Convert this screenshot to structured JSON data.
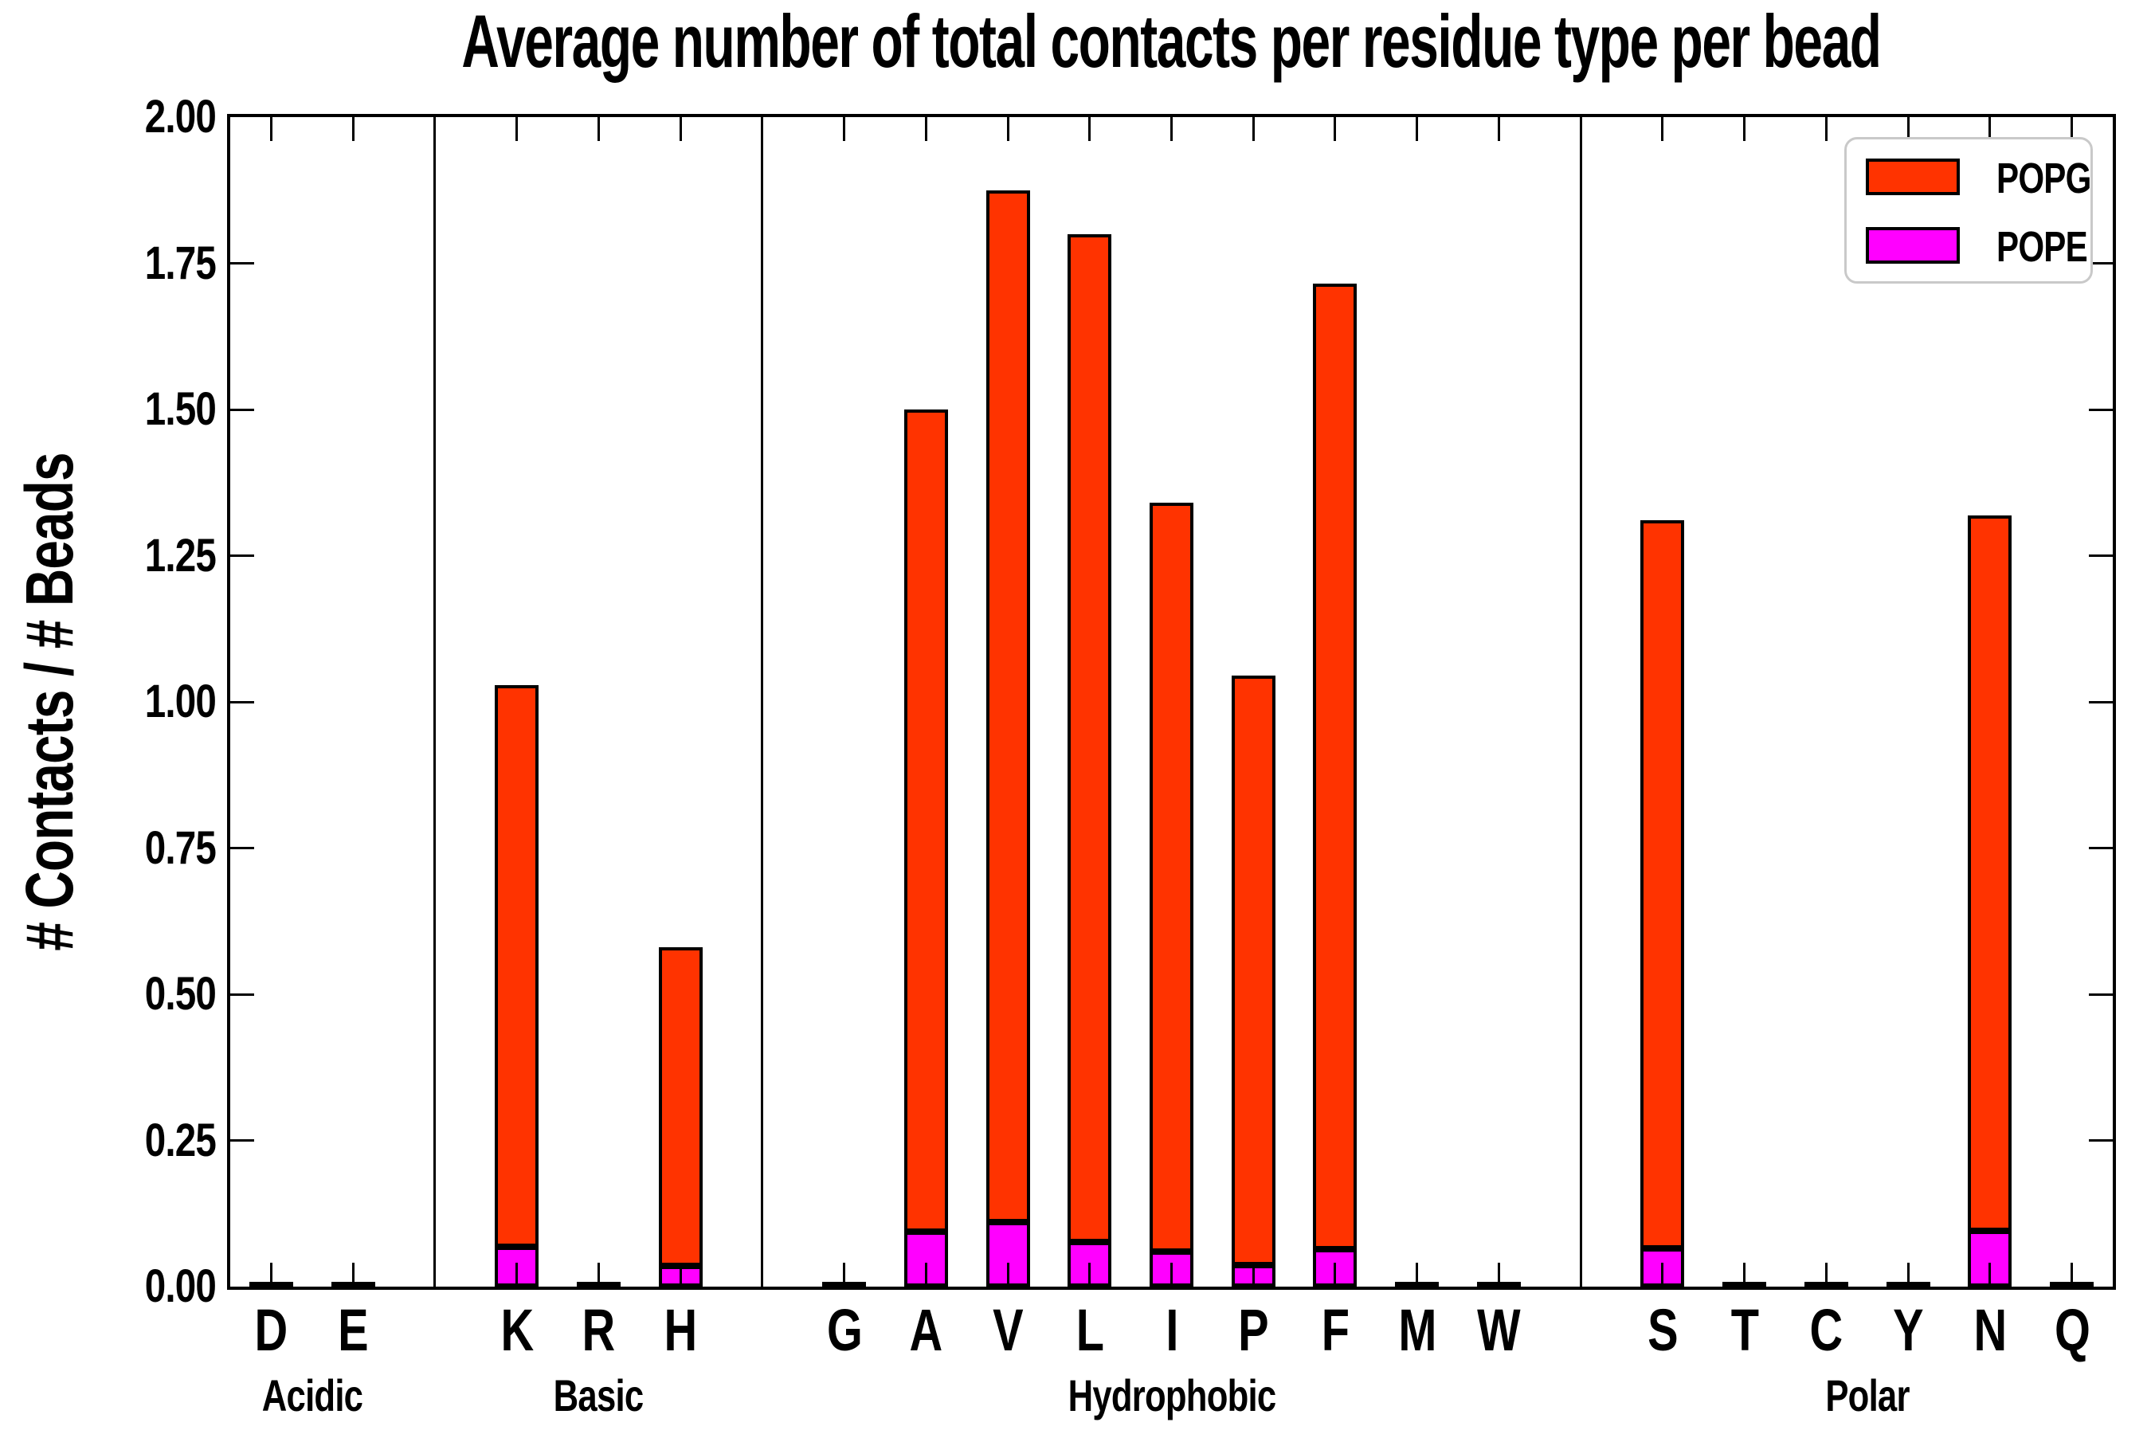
{
  "title": "Average number of total contacts per residue type per bead",
  "y_axis": {
    "label": "# Contacts / # Beads",
    "ticks": [
      "0.00",
      "0.25",
      "0.50",
      "0.75",
      "1.00",
      "1.25",
      "1.50",
      "1.75",
      "2.00"
    ]
  },
  "legend": [
    {
      "label": "POPG",
      "color": "#FF3300"
    },
    {
      "label": "POPE",
      "color": "#FF00FF"
    }
  ],
  "chart_data": {
    "type": "bar",
    "stacked": true,
    "title": "Average number of total contacts per residue type per bead",
    "xlabel": "",
    "ylabel": "# Contacts / # Beads",
    "ylim": [
      0,
      2
    ],
    "grid": false,
    "legend_position": "upper right",
    "categories": [
      "D",
      "E",
      "K",
      "R",
      "H",
      "G",
      "A",
      "V",
      "L",
      "I",
      "P",
      "F",
      "M",
      "W",
      "S",
      "T",
      "C",
      "Y",
      "N",
      "Q"
    ],
    "groups": [
      {
        "label": "Acidic",
        "members": [
          "D",
          "E"
        ]
      },
      {
        "label": "Basic",
        "members": [
          "K",
          "R",
          "H"
        ]
      },
      {
        "label": "Hydrophobic",
        "members": [
          "G",
          "A",
          "V",
          "L",
          "I",
          "P",
          "F",
          "M",
          "W"
        ]
      },
      {
        "label": "Polar",
        "members": [
          "S",
          "T",
          "C",
          "Y",
          "N",
          "Q"
        ]
      }
    ],
    "series": [
      {
        "name": "POPE",
        "color": "#FF00FF",
        "values": [
          0.002,
          0.002,
          0.068,
          0.002,
          0.035,
          0.002,
          0.094,
          0.111,
          0.076,
          0.06,
          0.037,
          0.064,
          0.002,
          0.002,
          0.065,
          0.002,
          0.002,
          0.002,
          0.096,
          0.002
        ]
      },
      {
        "name": "POPG",
        "color": "#FF3300",
        "values": [
          0.002,
          0.002,
          0.96,
          0.002,
          0.545,
          0.002,
          1.406,
          1.764,
          1.724,
          1.28,
          1.008,
          1.651,
          0.002,
          0.002,
          1.245,
          0.002,
          0.002,
          0.002,
          1.224,
          0.002
        ]
      }
    ],
    "totals": [
      0.004,
      0.004,
      1.028,
      0.004,
      0.58,
      0.004,
      1.5,
      1.875,
      1.8,
      1.34,
      1.045,
      1.715,
      0.004,
      0.004,
      1.31,
      0.004,
      0.004,
      0.004,
      1.32,
      0.004
    ]
  }
}
